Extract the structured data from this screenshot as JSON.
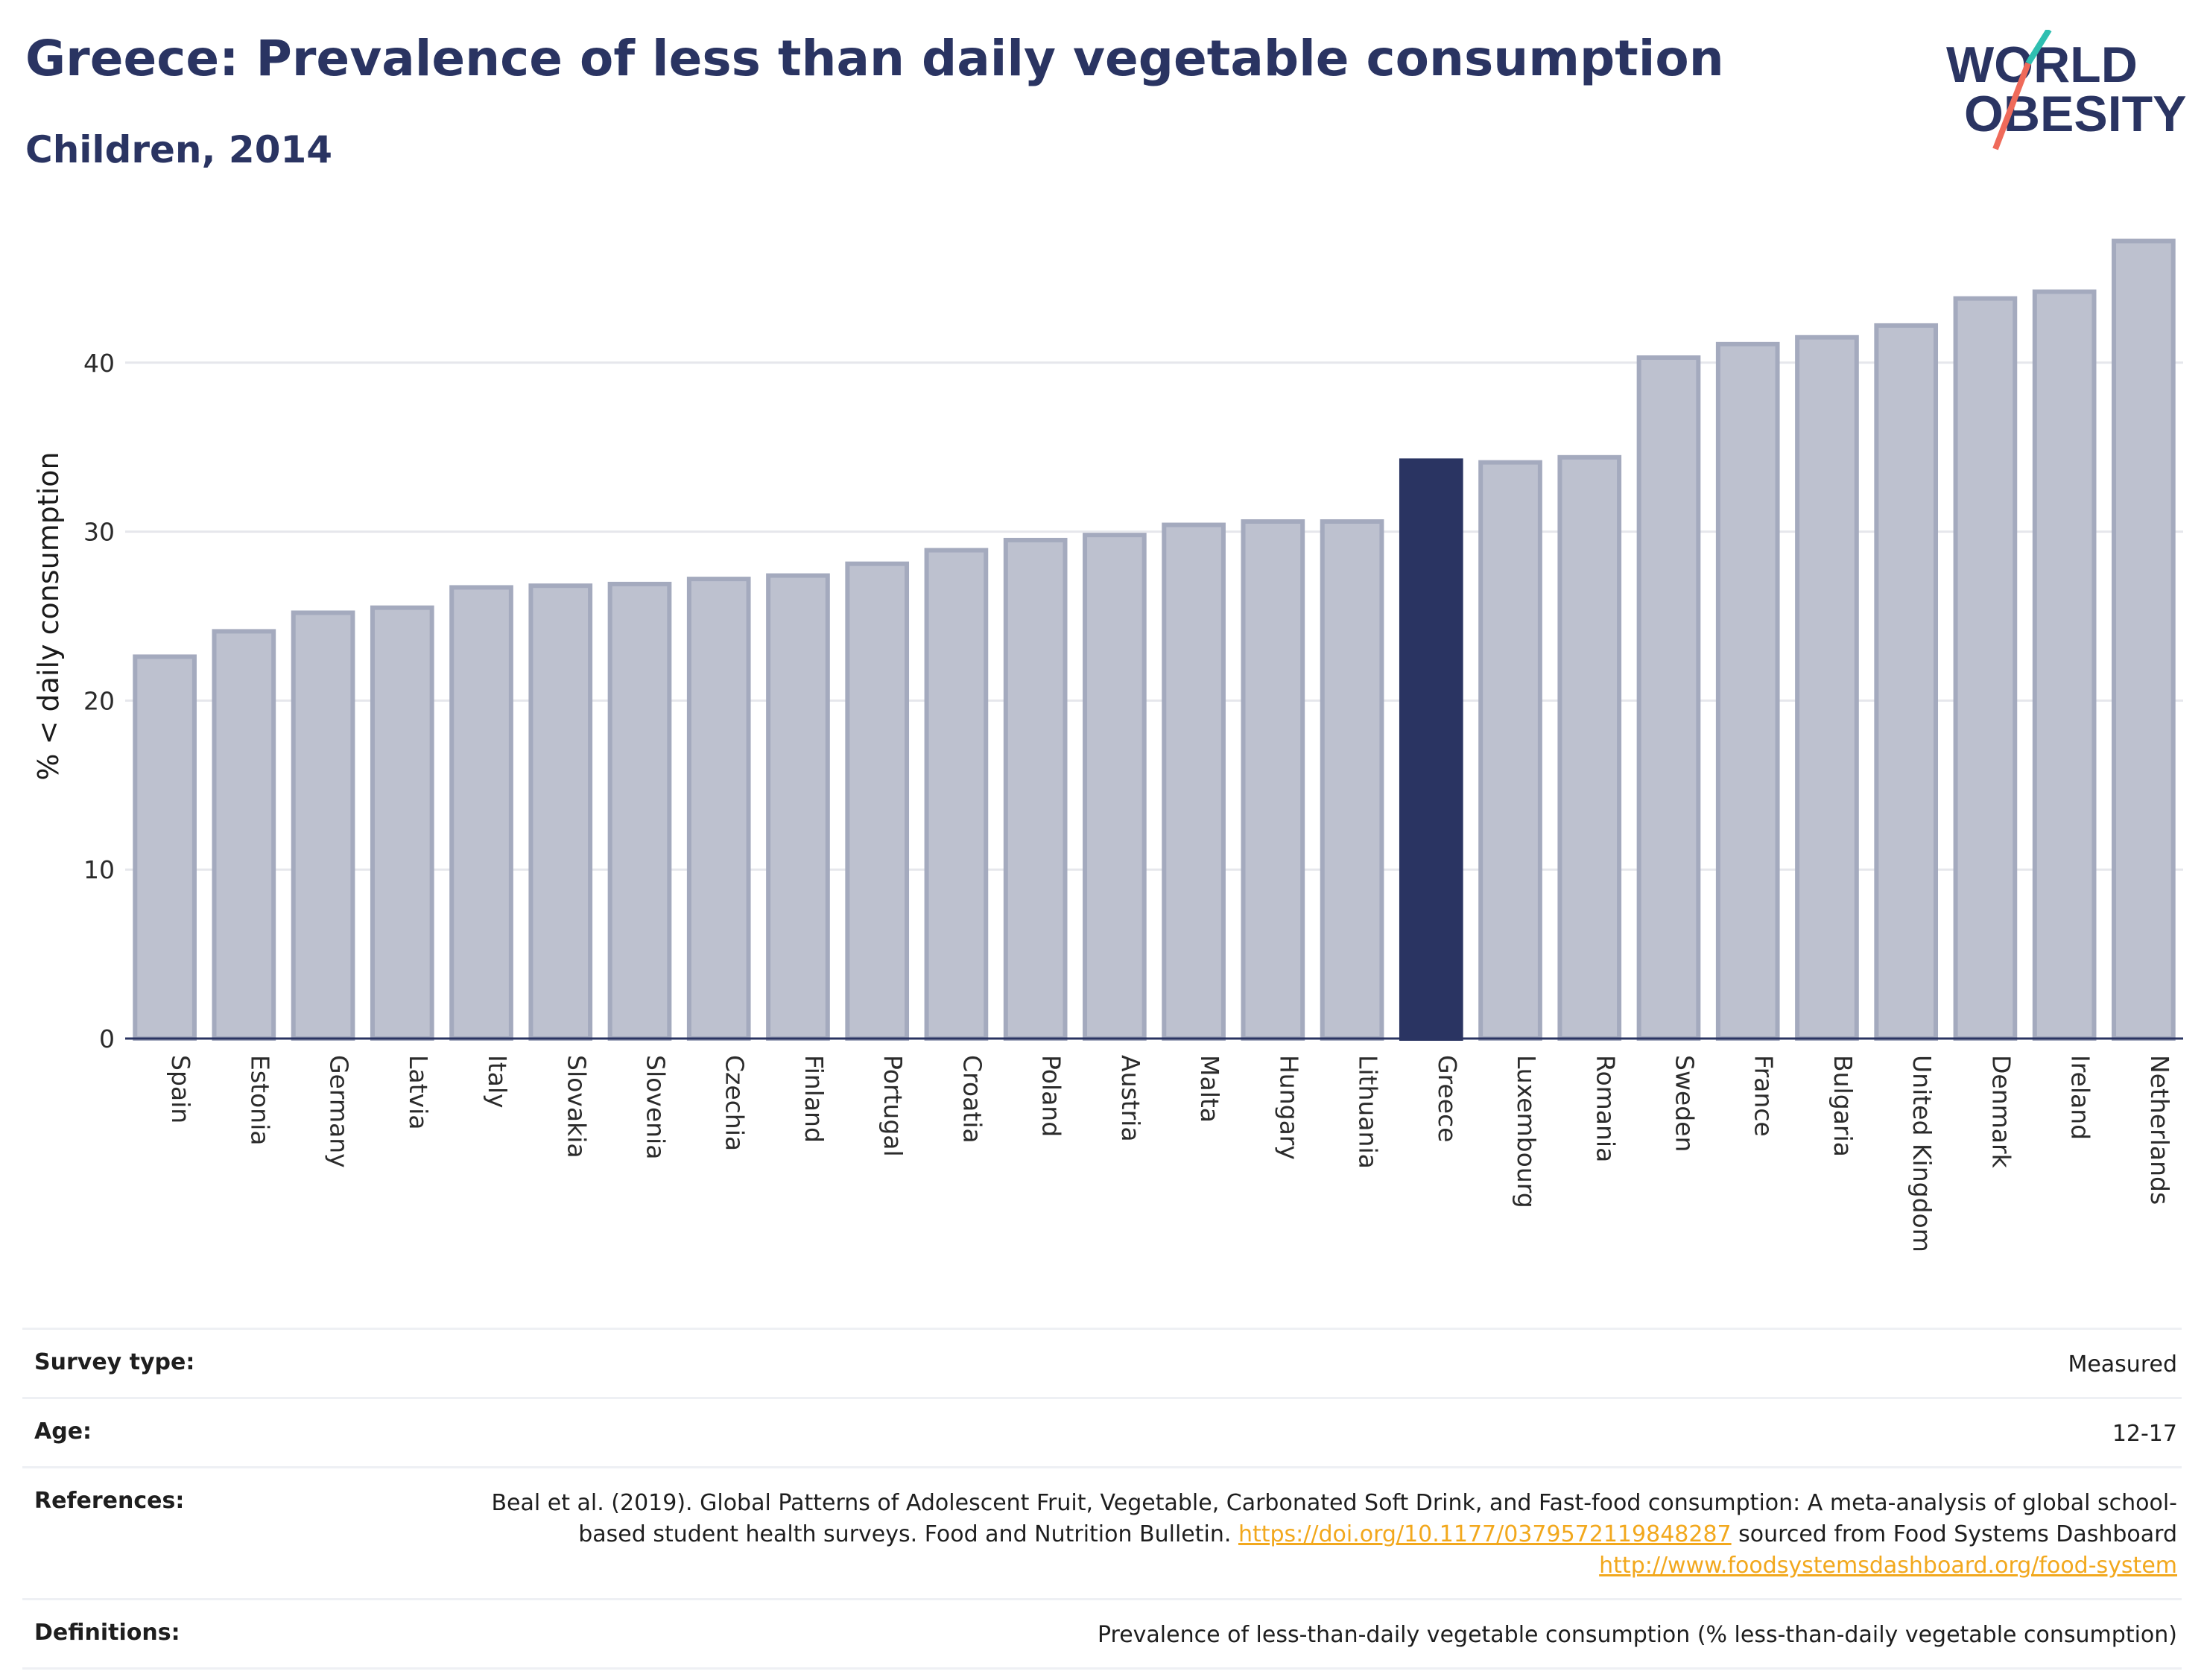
{
  "header": {
    "title": "Greece: Prevalence of less than daily vegetable consumption",
    "subtitle": "Children, 2014"
  },
  "logo": {
    "text_line1": "WORLD",
    "text_line2": "OBESITY",
    "colors": {
      "text": "#2a3462",
      "slash_top": "#2fbfb1",
      "slash_bottom": "#ef6a5a"
    }
  },
  "chart_data": {
    "type": "bar",
    "title": "Greece: Prevalence of less than daily vegetable consumption",
    "subtitle": "Children, 2014",
    "ylabel": "% < daily consumption",
    "xlabel": "",
    "ylim": [
      0,
      50
    ],
    "yticks": [
      0,
      10,
      20,
      30,
      40
    ],
    "grid": true,
    "highlight": "Greece",
    "colors": {
      "bar": "#bdc1cf",
      "bar_border": "#a4aabe",
      "highlight": "#2a3462",
      "grid": "#e6e7ec"
    },
    "categories": [
      "Spain",
      "Estonia",
      "Germany",
      "Latvia",
      "Italy",
      "Slovakia",
      "Slovenia",
      "Czechia",
      "Finland",
      "Portugal",
      "Croatia",
      "Poland",
      "Austria",
      "Malta",
      "Hungary",
      "Lithuania",
      "Greece",
      "Luxembourg",
      "Romania",
      "Sweden",
      "France",
      "Bulgaria",
      "United Kingdom",
      "Denmark",
      "Ireland",
      "Netherlands"
    ],
    "values": [
      22.6,
      24.1,
      25.2,
      25.5,
      26.7,
      26.8,
      26.9,
      27.2,
      27.4,
      28.1,
      28.9,
      29.5,
      29.8,
      30.4,
      30.6,
      30.6,
      34.2,
      34.1,
      34.4,
      40.3,
      41.1,
      41.5,
      42.2,
      43.8,
      44.2,
      47.2
    ]
  },
  "info": {
    "survey_type": {
      "label": "Survey type:",
      "value": "Measured"
    },
    "age": {
      "label": "Age:",
      "value": "12-17"
    },
    "references": {
      "label": "References:",
      "text1": "Beal et al. (2019). Global Patterns of Adolescent Fruit, Vegetable, Carbonated Soft Drink, and Fast-food consumption: A meta-analysis of global school-based student health surveys. Food and Nutrition Bulletin.",
      "link1": "https://doi.org/10.1177/0379572119848287",
      "text2": "sourced from Food Systems Dashboard",
      "link2": "http://www.foodsystemsdashboard.org/food-system"
    },
    "definitions": {
      "label": "Definitions:",
      "value": "Prevalence of less-than-daily vegetable consumption (% less-than-daily vegetable consumption)"
    }
  }
}
